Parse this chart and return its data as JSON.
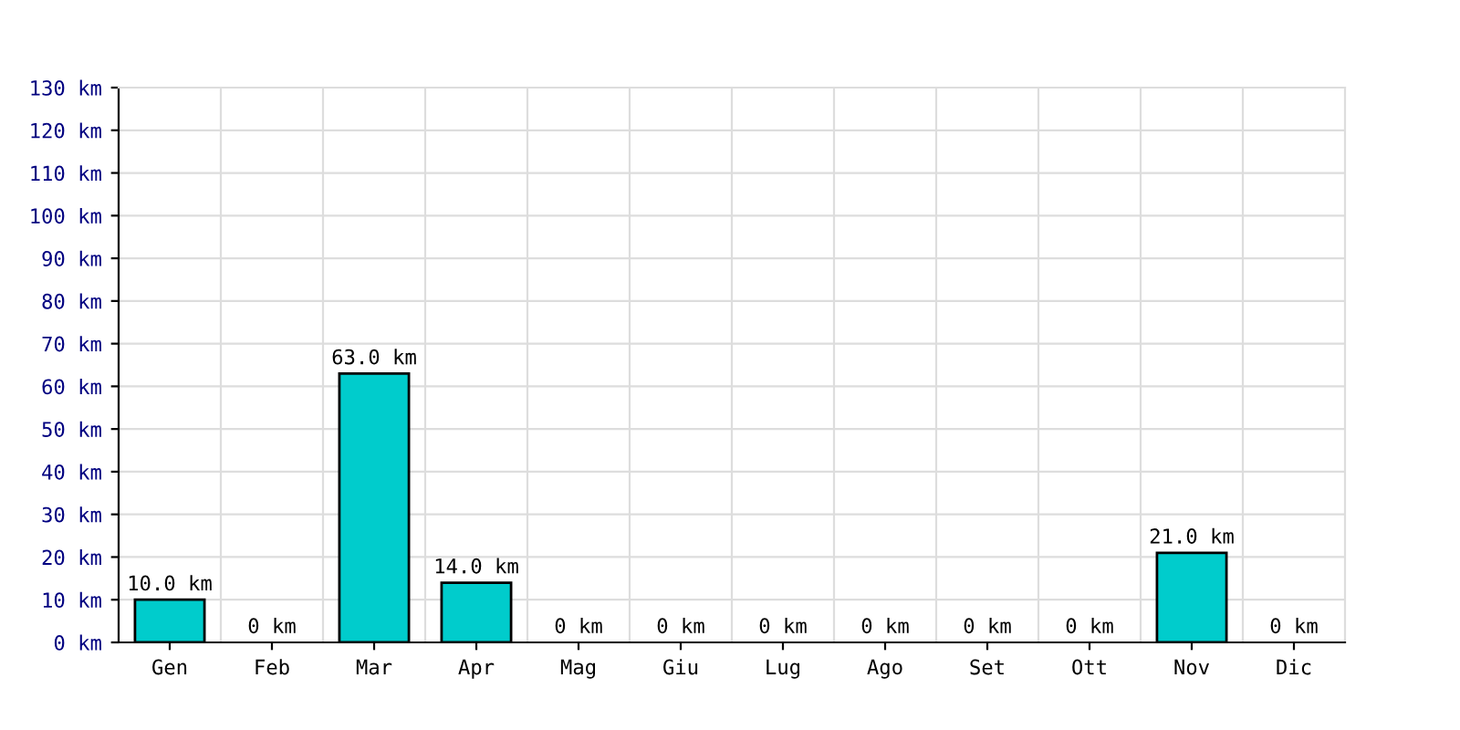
{
  "chart_data": {
    "type": "bar",
    "categories": [
      "Gen",
      "Feb",
      "Mar",
      "Apr",
      "Mag",
      "Giu",
      "Lug",
      "Ago",
      "Set",
      "Ott",
      "Nov",
      "Dic"
    ],
    "values": [
      10,
      0,
      63,
      14,
      0,
      0,
      0,
      0,
      0,
      0,
      21,
      0
    ],
    "value_labels": [
      "10.0 km",
      "0 km",
      "63.0 km",
      "14.0 km",
      "0 km",
      "0 km",
      "0 km",
      "0 km",
      "0 km",
      "0 km",
      "21.0 km",
      "0 km"
    ],
    "color": "#00cccc",
    "ylim": [
      0,
      130
    ],
    "yticks": [
      {
        "value": 0,
        "label": "0 km"
      },
      {
        "value": 10,
        "label": "10 km"
      },
      {
        "value": 20,
        "label": "20 km"
      },
      {
        "value": 30,
        "label": "30 km"
      },
      {
        "value": 40,
        "label": "40 km"
      },
      {
        "value": 50,
        "label": "50 km"
      },
      {
        "value": 60,
        "label": "60 km"
      },
      {
        "value": 70,
        "label": "70 km"
      },
      {
        "value": 80,
        "label": "80 km"
      },
      {
        "value": 90,
        "label": "90 km"
      },
      {
        "value": 100,
        "label": "100 km"
      },
      {
        "value": 110,
        "label": "110 km"
      },
      {
        "value": 120,
        "label": "120 km"
      },
      {
        "value": 130,
        "label": "130 km"
      }
    ],
    "grid": true
  }
}
